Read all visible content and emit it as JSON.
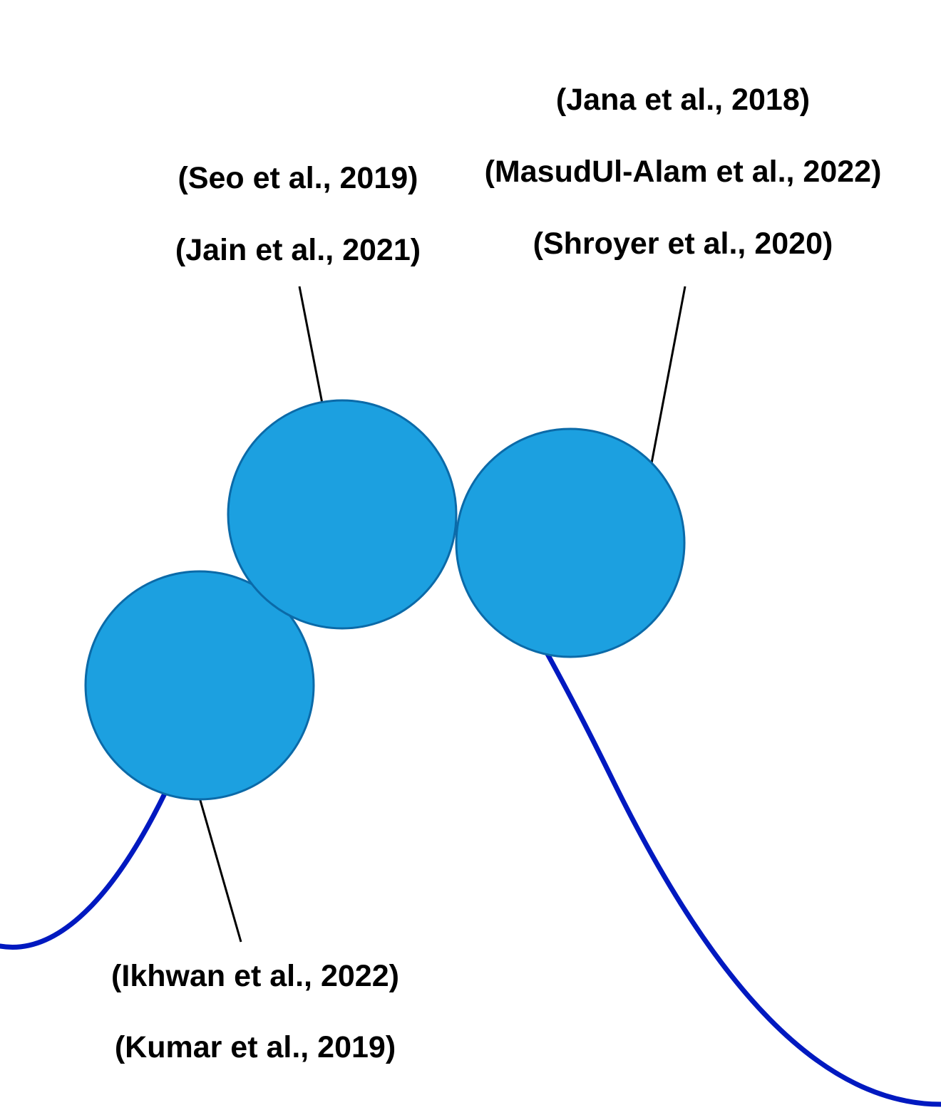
{
  "colors": {
    "node_fill": "#1ca0e0",
    "node_stroke": "#0b6aa8",
    "curve": "#0019c0",
    "leader": "#000000",
    "text": "#000000"
  },
  "groups": [
    {
      "id": "group-upper-left",
      "citations": [
        "(Seo et al., 2019)",
        "(Jain et al., 2021)"
      ]
    },
    {
      "id": "group-right",
      "citations": [
        "(Jana et al., 2018)",
        "(MasudUl-Alam et al., 2022)",
        "(Shroyer et al., 2020)"
      ]
    },
    {
      "id": "group-lower-left",
      "citations": [
        "(Ikhwan et al., 2022)",
        "(Kumar et al., 2019)"
      ]
    }
  ]
}
